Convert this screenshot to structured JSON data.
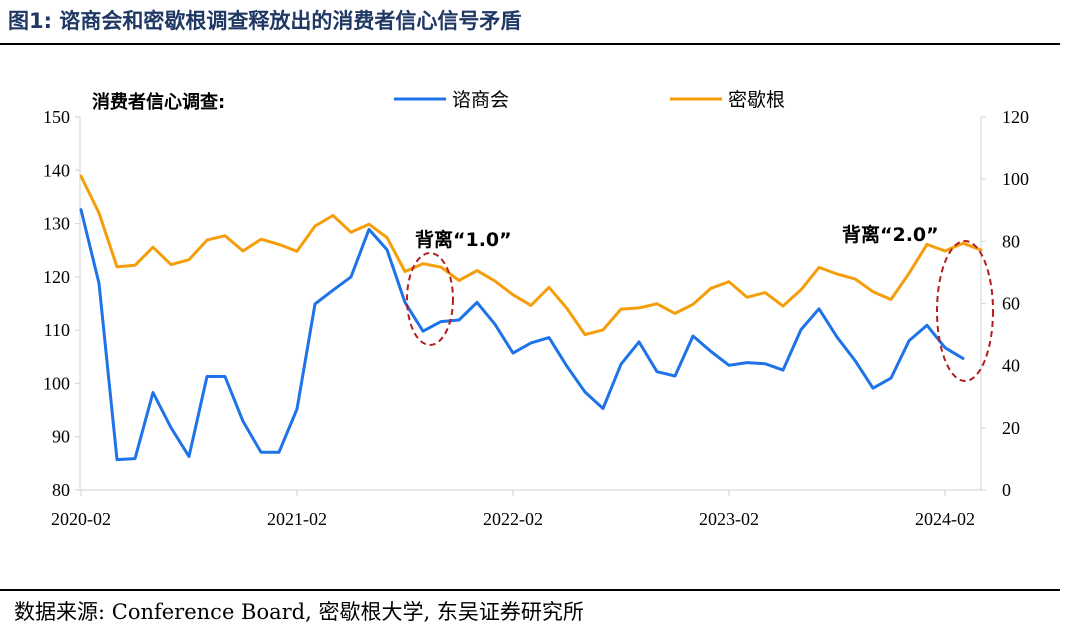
{
  "title": "图1:  谘商会和密歇根调查释放出的消费者信心信号矛盾",
  "source": "数据来源:  Conference Board,  密歇根大学,  东吴证券研究所",
  "colors": {
    "cb": "#1e73e8",
    "mich": "#f59e0b",
    "annotation": "#b41e1e"
  },
  "chart_data": {
    "type": "line",
    "subtitle": "消费者信心调查:",
    "x_tick_labels": [
      "2020-02",
      "2021-02",
      "2022-02",
      "2023-02",
      "2024-02"
    ],
    "x_months": [
      "2020-02",
      "2020-03",
      "2020-04",
      "2020-05",
      "2020-06",
      "2020-07",
      "2020-08",
      "2020-09",
      "2020-10",
      "2020-11",
      "2020-12",
      "2021-01",
      "2021-02",
      "2021-03",
      "2021-04",
      "2021-05",
      "2021-06",
      "2021-07",
      "2021-08",
      "2021-09",
      "2021-10",
      "2021-11",
      "2021-12",
      "2022-01",
      "2022-02",
      "2022-03",
      "2022-04",
      "2022-05",
      "2022-06",
      "2022-07",
      "2022-08",
      "2022-09",
      "2022-10",
      "2022-11",
      "2022-12",
      "2023-01",
      "2023-02",
      "2023-03",
      "2023-04",
      "2023-05",
      "2023-06",
      "2023-07",
      "2023-08",
      "2023-09",
      "2023-10",
      "2023-11",
      "2023-12",
      "2024-01",
      "2024-02",
      "2024-03",
      "2024-04"
    ],
    "left_axis": {
      "min": 80,
      "max": 150,
      "ticks": [
        80,
        90,
        100,
        110,
        120,
        130,
        140,
        150
      ]
    },
    "right_axis": {
      "min": 0,
      "max": 120,
      "ticks": [
        0,
        20,
        40,
        60,
        80,
        100,
        120
      ]
    },
    "series": [
      {
        "name": "谘商会",
        "axis": "left",
        "values": [
          132.6,
          118.8,
          85.7,
          85.9,
          98.3,
          91.7,
          86.3,
          101.3,
          101.3,
          92.9,
          87.1,
          87.1,
          95.2,
          114.9,
          117.5,
          120.0,
          128.9,
          125.1,
          115.2,
          109.8,
          111.6,
          111.9,
          115.2,
          111.1,
          105.7,
          107.6,
          108.6,
          103.2,
          98.4,
          95.3,
          103.6,
          107.8,
          102.2,
          101.4,
          108.9,
          106.0,
          103.4,
          103.9,
          103.7,
          102.5,
          110.1,
          114.0,
          108.7,
          104.3,
          99.1,
          101.0,
          108.0,
          110.9,
          106.7,
          104.7,
          null
        ]
      },
      {
        "name": "密歇根",
        "axis": "right",
        "values": [
          101.0,
          89.1,
          71.8,
          72.3,
          78.1,
          72.5,
          74.1,
          80.4,
          81.8,
          76.9,
          80.7,
          79.0,
          76.8,
          84.9,
          88.3,
          82.9,
          85.5,
          81.2,
          70.3,
          72.8,
          71.7,
          67.4,
          70.6,
          67.2,
          62.8,
          59.4,
          65.2,
          58.4,
          50.0,
          51.5,
          58.2,
          58.6,
          59.9,
          56.8,
          59.7,
          64.9,
          67.0,
          62.0,
          63.5,
          59.2,
          64.4,
          71.6,
          69.5,
          67.9,
          63.8,
          61.3,
          69.7,
          79.0,
          76.9,
          79.4,
          77.2
        ]
      }
    ],
    "annotations": [
      {
        "text": "背离“1.0”"
      },
      {
        "text": "背离“2.0”"
      }
    ],
    "legend_placement": "top-center",
    "grid": false
  }
}
